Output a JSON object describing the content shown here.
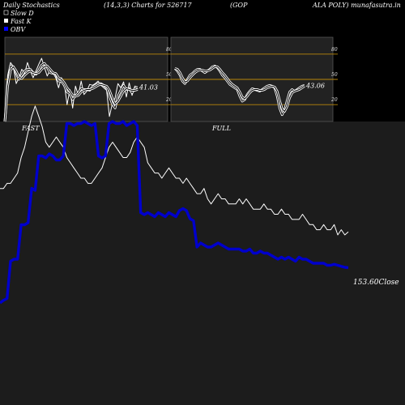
{
  "header": {
    "title": "Daily Stochastics",
    "params": "(14,3,3) Charts for 526717",
    "company_a": "(GOP",
    "company_b": "ALA POLY) munafasutra.in"
  },
  "legend": [
    {
      "label": "Slow  D",
      "color": "#000000"
    },
    {
      "label": "Fast K",
      "color": "#ffffff"
    },
    {
      "label": "OBV",
      "color": "#0000ff"
    }
  ],
  "colors": {
    "background": "#000000",
    "main_panel": "#1c1c1c",
    "sub_panel": "#222222",
    "level_line": "#b8860b",
    "price_line": "#ffffff",
    "obv_line": "#0000cc"
  },
  "chart_data": [
    {
      "type": "line",
      "title": "FAST",
      "ylim": [
        0,
        100
      ],
      "ticks": [
        {
          "label": "80",
          "value": 80
        },
        {
          "label": "50",
          "value": 50
        },
        {
          "label": "20",
          "value": 20
        }
      ],
      "levels": [
        80,
        50,
        20
      ],
      "last_value_label": "41.03",
      "series": [
        {
          "values": [
            0,
            55,
            70,
            65,
            45,
            52,
            62,
            57,
            70,
            60,
            52,
            60,
            68,
            75,
            64,
            54,
            61,
            58,
            52,
            40,
            52,
            46,
            20,
            38,
            16,
            42,
            31,
            48,
            32,
            36,
            44,
            43,
            45,
            48,
            43,
            40,
            37,
            6,
            21,
            28,
            45,
            40,
            47,
            29,
            46,
            31,
            42,
            41
          ]
        },
        {
          "values": [
            0,
            47,
            66,
            65,
            57,
            50,
            55,
            60,
            62,
            62,
            58,
            56,
            61,
            67,
            69,
            64,
            58,
            57,
            57,
            48,
            48,
            43,
            35,
            33,
            26,
            31,
            34,
            39,
            38,
            38,
            37,
            41,
            43,
            45,
            45,
            43,
            40,
            30,
            21,
            16,
            30,
            37,
            43,
            38,
            39,
            34,
            39,
            38
          ]
        },
        {
          "values": [
            0,
            42,
            61,
            65,
            60,
            53,
            51,
            55,
            58,
            60,
            58,
            57,
            58,
            62,
            65,
            66,
            62,
            58,
            57,
            52,
            50,
            46,
            40,
            36,
            31,
            30,
            31,
            35,
            37,
            38,
            38,
            39,
            41,
            43,
            44,
            43,
            42,
            37,
            28,
            21,
            24,
            30,
            36,
            39,
            38,
            37,
            37,
            38
          ]
        }
      ]
    },
    {
      "type": "line",
      "title": "FULL",
      "ylim": [
        0,
        100
      ],
      "ticks": [
        {
          "label": "80",
          "value": 80
        },
        {
          "label": "50",
          "value": 50
        },
        {
          "label": "20",
          "value": 20
        }
      ],
      "levels": [
        80,
        50,
        20
      ],
      "last_value_label": "43.06",
      "series": [
        {
          "values": [
            63,
            60,
            55,
            48,
            45,
            50,
            55,
            57,
            60,
            62,
            62,
            60,
            58,
            60,
            62,
            65,
            66,
            64,
            60,
            55,
            52,
            48,
            44,
            42,
            40,
            38,
            30,
            24,
            26,
            32,
            36,
            39,
            38,
            37,
            36,
            38,
            40,
            42,
            43,
            42,
            40,
            30,
            16,
            8,
            14,
            25,
            35,
            38,
            36,
            38,
            40,
            42,
            43
          ]
        },
        {
          "values": [
            63,
            62,
            58,
            52,
            47,
            48,
            52,
            55,
            58,
            60,
            61,
            61,
            60,
            60,
            61,
            63,
            65,
            65,
            62,
            58,
            55,
            51,
            47,
            44,
            42,
            40,
            35,
            29,
            27,
            30,
            34,
            37,
            38,
            38,
            37,
            37,
            38,
            40,
            41,
            42,
            41,
            36,
            25,
            15,
            12,
            18,
            28,
            34,
            36,
            37,
            38,
            40,
            42
          ]
        }
      ]
    },
    {
      "type": "line",
      "ylim": [
        120,
        175
      ],
      "close_label": "153.60Close",
      "series": [
        {
          "values": [
            162,
            162,
            163,
            163,
            164,
            165,
            168,
            170,
            173,
            176,
            178,
            176,
            174,
            171,
            170,
            171,
            172,
            171,
            170,
            168,
            167,
            166,
            165,
            164,
            164,
            163,
            163,
            164,
            165,
            166,
            168,
            170,
            171,
            170,
            169,
            168,
            168,
            169,
            171,
            172,
            171,
            170,
            167,
            166,
            165,
            165,
            164,
            165,
            166,
            165,
            164,
            164,
            163,
            164,
            163,
            162,
            161,
            161,
            162,
            160,
            159,
            160,
            161,
            160,
            160,
            159,
            159,
            159,
            160,
            159,
            160,
            159,
            158,
            158,
            158,
            159,
            158,
            158,
            157,
            157,
            158,
            157,
            157,
            156,
            156,
            156,
            157,
            156,
            155,
            155,
            154,
            154,
            155,
            154,
            154,
            155,
            153,
            154,
            153,
            153.6
          ]
        },
        {
          "values": [
            -9.6,
            -8.3,
            -7.4,
            11,
            12,
            12,
            29,
            29,
            30,
            47,
            46,
            63,
            63,
            62,
            64,
            63,
            61,
            61,
            63,
            79,
            79,
            78,
            79,
            79,
            80,
            79,
            78,
            79,
            63,
            62,
            63,
            79,
            80,
            79,
            79,
            80,
            78,
            79,
            80,
            78,
            35,
            34,
            35,
            34,
            33,
            35,
            34,
            33,
            35,
            34,
            33,
            36,
            37,
            36,
            32,
            31,
            18,
            20,
            19,
            18,
            18,
            19,
            20,
            19,
            18,
            17,
            17,
            17,
            17,
            16,
            16,
            17,
            15,
            15,
            16,
            15,
            15,
            14,
            13,
            12,
            13,
            12,
            13,
            12,
            11,
            13,
            12,
            12,
            11,
            10,
            10,
            10,
            10,
            9,
            9,
            9.5,
            9,
            8.5,
            8,
            7.8
          ]
        }
      ]
    }
  ]
}
